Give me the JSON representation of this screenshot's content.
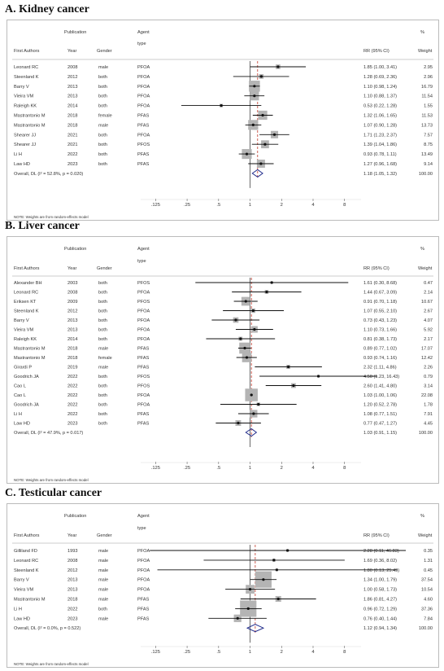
{
  "panels": [
    {
      "title": "A. Kidney cancer",
      "headers": {
        "publication": "Publication",
        "first_authors": "First Authors",
        "year": "Year",
        "gender": "Gender",
        "agent": "Agent",
        "type": "type",
        "rr": "RR (95% CI)",
        "pct": "%",
        "weight": "Weight"
      },
      "note": "NOTE: Weights are from random-effects model",
      "overall": {
        "label": "Overall, DL (I² = 52.8%, p = 0.020)",
        "est": 1.18,
        "lo": 1.05,
        "hi": 1.32,
        "ci_text": "1.18 (1.05, 1.32)",
        "weight": "100.00"
      },
      "ticks": [
        {
          "value": 0.125,
          "label": ".125"
        },
        {
          "value": 0.25,
          "label": ".25"
        },
        {
          "value": 0.5,
          "label": ".5"
        },
        {
          "value": 1,
          "label": "1"
        },
        {
          "value": 2,
          "label": "2"
        },
        {
          "value": 4,
          "label": "4"
        },
        {
          "value": 8,
          "label": "8"
        }
      ],
      "rows": [
        {
          "author": "Leonard RC",
          "year": "2008",
          "gender": "male",
          "agent": "PFOA",
          "ci_text": "1.85 (1.00, 3.41)",
          "weight": "2.95"
        },
        {
          "author": "Steenland K",
          "year": "2012",
          "gender": "both",
          "agent": "PFOA",
          "ci_text": "1.28 (0.69, 2.36)",
          "weight": "2.96"
        },
        {
          "author": "Barry V",
          "year": "2013",
          "gender": "both",
          "agent": "PFOA",
          "ci_text": "1.10 (0.98, 1.24)",
          "weight": "16.79"
        },
        {
          "author": "Vieira VM",
          "year": "2013",
          "gender": "both",
          "agent": "PFOA",
          "ci_text": "1.10 (0.88, 1.37)",
          "weight": "11.54"
        },
        {
          "author": "Raleigh KK",
          "year": "2014",
          "gender": "both",
          "agent": "PFOA",
          "ci_text": "0.53 (0.22, 1.28)",
          "weight": "1.55"
        },
        {
          "author": "Mastrantonio M",
          "year": "2018",
          "gender": "female",
          "agent": "PFAS",
          "ci_text": "1.32 (1.06, 1.65)",
          "weight": "11.53"
        },
        {
          "author": "Mastrantonio M",
          "year": "2018",
          "gender": "male",
          "agent": "PFAS",
          "ci_text": "1.07 (0.90, 1.28)",
          "weight": "13.73"
        },
        {
          "author": "Shearer JJ",
          "year": "2021",
          "gender": "both",
          "agent": "PFOA",
          "ci_text": "1.71 (1.23, 2.37)",
          "weight": "7.57"
        },
        {
          "author": "Shearer JJ",
          "year": "2021",
          "gender": "both",
          "agent": "PFOS",
          "ci_text": "1.39 (1.04, 1.86)",
          "weight": "8.75"
        },
        {
          "author": "Li H",
          "year": "2022",
          "gender": "both",
          "agent": "PFAS",
          "ci_text": "0.93 (0.78, 1.11)",
          "weight": "13.49"
        },
        {
          "author": "Law HD",
          "year": "2023",
          "gender": "both",
          "agent": "PFAS",
          "ci_text": "1.27 (0.96, 1.68)",
          "weight": "9.14"
        }
      ]
    },
    {
      "title": "B. Liver cancer",
      "headers": {
        "publication": "Publication",
        "first_authors": "First Authors",
        "year": "Year",
        "gender": "Gender",
        "agent": "Agent",
        "type": "type",
        "rr": "RR (95% CI)",
        "pct": "%",
        "weight": "Weight"
      },
      "note": "NOTE: Weights are from random-effects model",
      "overall": {
        "label": "Overall, DL (I² = 47.9%, p = 0.017)",
        "est": 1.03,
        "lo": 0.91,
        "hi": 1.15,
        "ci_text": "1.03 (0.91, 1.15)",
        "weight": "100.00"
      },
      "ticks": [
        {
          "value": 0.125,
          "label": ".125"
        },
        {
          "value": 0.25,
          "label": ".25"
        },
        {
          "value": 0.5,
          "label": ".5"
        },
        {
          "value": 1,
          "label": "1"
        },
        {
          "value": 2,
          "label": "2"
        },
        {
          "value": 4,
          "label": "4"
        },
        {
          "value": 8,
          "label": "8"
        }
      ],
      "rows": [
        {
          "author": "Alexander BH",
          "year": "2003",
          "gender": "both",
          "agent": "PFOS",
          "ci_text": "1.61 (0.30, 8.68)",
          "weight": "0.47"
        },
        {
          "author": "Leonard RC",
          "year": "2008",
          "gender": "both",
          "agent": "PFOA",
          "ci_text": "1.44 (0.67, 3.09)",
          "weight": "2.14"
        },
        {
          "author": "Eriksen KT",
          "year": "2009",
          "gender": "both",
          "agent": "PFOS",
          "ci_text": "0.91 (0.70, 1.18)",
          "weight": "10.67"
        },
        {
          "author": "Steenland K",
          "year": "2012",
          "gender": "both",
          "agent": "PFOA",
          "ci_text": "1.07 (0.55, 2.10)",
          "weight": "2.67"
        },
        {
          "author": "Barry V",
          "year": "2013",
          "gender": "both",
          "agent": "PFOA",
          "ci_text": "0.73 (0.43, 1.23)",
          "weight": "4.07"
        },
        {
          "author": "Vieira VM",
          "year": "2013",
          "gender": "both",
          "agent": "PFOA",
          "ci_text": "1.10 (0.73, 1.66)",
          "weight": "5.92"
        },
        {
          "author": "Raleigh KK",
          "year": "2014",
          "gender": "both",
          "agent": "PFOA",
          "ci_text": "0.81 (0.38, 1.73)",
          "weight": "2.17"
        },
        {
          "author": "Mastrantonio M",
          "year": "2018",
          "gender": "male",
          "agent": "PFAS",
          "ci_text": "0.89 (0.77, 1.02)",
          "weight": "17.07"
        },
        {
          "author": "Mastrantonio M",
          "year": "2018",
          "gender": "female",
          "agent": "PFAS",
          "ci_text": "0.93 (0.74, 1.16)",
          "weight": "12.42"
        },
        {
          "author": "Girardi P",
          "year": "2019",
          "gender": "male",
          "agent": "PFAS",
          "ci_text": "2.32 (1.11, 4.86)",
          "weight": "2.26"
        },
        {
          "author": "Goodrich JA",
          "year": "2022",
          "gender": "both",
          "agent": "PFOS",
          "ci_text": "4.50 (1.23, 16.43)",
          "weight": "0.79"
        },
        {
          "author": "Cao L",
          "year": "2022",
          "gender": "both",
          "agent": "PFOS",
          "ci_text": "2.60 (1.41, 4.80)",
          "weight": "3.14"
        },
        {
          "author": "Cao L",
          "year": "2022",
          "gender": "both",
          "agent": "PFOA",
          "ci_text": "1.03 (1.00, 1.06)",
          "weight": "22.08"
        },
        {
          "author": "Goodrich JA",
          "year": "2022",
          "gender": "both",
          "agent": "PFOA",
          "ci_text": "1.20 (0.52, 2.78)",
          "weight": "1.78"
        },
        {
          "author": "Li H",
          "year": "2022",
          "gender": "both",
          "agent": "PFAS",
          "ci_text": "1.08 (0.77, 1.51)",
          "weight": "7.91"
        },
        {
          "author": "Law HD",
          "year": "2023",
          "gender": "both",
          "agent": "PFAS",
          "ci_text": "0.77 (0.47, 1.27)",
          "weight": "4.45"
        }
      ]
    },
    {
      "title": "C. Testicular cancer",
      "headers": {
        "publication": "Publication",
        "first_authors": "First Authors",
        "year": "Year",
        "gender": "Gender",
        "agent": "Agent",
        "type": "type",
        "rr": "RR (95% CI)",
        "pct": "%",
        "weight": "Weight"
      },
      "note": "NOTE: Weights are from random-effects model",
      "overall": {
        "label": "Overall, DL (I² = 0.0%, p = 0.522)",
        "est": 1.12,
        "lo": 0.94,
        "hi": 1.34,
        "ci_text": "1.12 (0.94, 1.34)",
        "weight": "100.00"
      },
      "ticks": [
        {
          "value": 0.125,
          "label": ".125"
        },
        {
          "value": 0.25,
          "label": ".25"
        },
        {
          "value": 0.5,
          "label": ".5"
        },
        {
          "value": 1,
          "label": "1"
        },
        {
          "value": 2,
          "label": "2"
        },
        {
          "value": 4,
          "label": "4"
        },
        {
          "value": 8,
          "label": "8"
        }
      ],
      "rows": [
        {
          "author": "Gilliland FD",
          "year": "1993",
          "gender": "male",
          "agent": "PFOA",
          "ci_text": "2.28 (0.11, 46.83)",
          "weight": "0.35"
        },
        {
          "author": "Leonard RC",
          "year": "2008",
          "gender": "male",
          "agent": "PFOA",
          "ci_text": "1.69 (0.36, 8.02)",
          "weight": "1.31"
        },
        {
          "author": "Steenland K",
          "year": "2012",
          "gender": "male",
          "agent": "PFOA",
          "ci_text": "1.80 (0.13, 25.49)",
          "weight": "0.45"
        },
        {
          "author": "Barry V",
          "year": "2013",
          "gender": "male",
          "agent": "PFOA",
          "ci_text": "1.34 (1.00, 1.79)",
          "weight": "37.54"
        },
        {
          "author": "Vieira VM",
          "year": "2013",
          "gender": "male",
          "agent": "PFOA",
          "ci_text": "1.00 (0.58, 1.73)",
          "weight": "10.54"
        },
        {
          "author": "Mastrantonio M",
          "year": "2018",
          "gender": "male",
          "agent": "PFAS",
          "ci_text": "1.86 (0.81, 4.27)",
          "weight": "4.60"
        },
        {
          "author": "Li H",
          "year": "2022",
          "gender": "both",
          "agent": "PFAS",
          "ci_text": "0.96 (0.72, 1.29)",
          "weight": "37.36"
        },
        {
          "author": "Law HD",
          "year": "2023",
          "gender": "male",
          "agent": "PFAS",
          "ci_text": "0.76 (0.40, 1.44)",
          "weight": "7.84"
        }
      ]
    }
  ],
  "chart_data": [
    {
      "type": "forest",
      "title": "A. Kidney cancer",
      "xscale": "log",
      "xticks": [
        0.125,
        0.25,
        0.5,
        1,
        2,
        4,
        8
      ],
      "reference_line": 1,
      "categories": [
        "Leonard RC 2008 male PFOA",
        "Steenland K 2012 both PFOA",
        "Barry V 2013 both PFOA",
        "Vieira VM 2013 both PFOA",
        "Raleigh KK 2014 both PFOA",
        "Mastrantonio M 2018 female PFAS",
        "Mastrantonio M 2018 male PFAS",
        "Shearer JJ 2021 both PFOA",
        "Shearer JJ 2021 both PFOS",
        "Li H 2022 both PFAS",
        "Law HD 2023 both PFAS"
      ],
      "rr": [
        1.85,
        1.28,
        1.1,
        1.1,
        0.53,
        1.32,
        1.07,
        1.71,
        1.39,
        0.93,
        1.27
      ],
      "ci_low": [
        1.0,
        0.69,
        0.98,
        0.88,
        0.22,
        1.06,
        0.9,
        1.23,
        1.04,
        0.78,
        0.96
      ],
      "ci_high": [
        3.41,
        2.36,
        1.24,
        1.37,
        1.28,
        1.65,
        1.28,
        2.37,
        1.86,
        1.11,
        1.68
      ],
      "weights": [
        2.95,
        2.96,
        16.79,
        11.54,
        1.55,
        11.53,
        13.73,
        7.57,
        8.75,
        13.49,
        9.14
      ],
      "overall": {
        "rr": 1.18,
        "ci_low": 1.05,
        "ci_high": 1.32,
        "i2": 52.8,
        "p": 0.02
      }
    },
    {
      "type": "forest",
      "title": "B. Liver cancer",
      "xscale": "log",
      "xticks": [
        0.125,
        0.25,
        0.5,
        1,
        2,
        4,
        8
      ],
      "reference_line": 1,
      "categories": [
        "Alexander BH 2003 both PFOS",
        "Leonard RC 2008 both PFOA",
        "Eriksen KT 2009 both PFOS",
        "Steenland K 2012 both PFOA",
        "Barry V 2013 both PFOA",
        "Vieira VM 2013 both PFOA",
        "Raleigh KK 2014 both PFOA",
        "Mastrantonio M 2018 male PFAS",
        "Mastrantonio M 2018 female PFAS",
        "Girardi P 2019 male PFAS",
        "Goodrich JA 2022 both PFOS",
        "Cao L 2022 both PFOS",
        "Cao L 2022 both PFOA",
        "Goodrich JA 2022 both PFOA",
        "Li H 2022 both PFAS",
        "Law HD 2023 both PFAS"
      ],
      "rr": [
        1.61,
        1.44,
        0.91,
        1.07,
        0.73,
        1.1,
        0.81,
        0.89,
        0.93,
        2.32,
        4.5,
        2.6,
        1.03,
        1.2,
        1.08,
        0.77
      ],
      "ci_low": [
        0.3,
        0.67,
        0.7,
        0.55,
        0.43,
        0.73,
        0.38,
        0.77,
        0.74,
        1.11,
        1.23,
        1.41,
        1.0,
        0.52,
        0.77,
        0.47
      ],
      "ci_high": [
        8.68,
        3.09,
        1.18,
        2.1,
        1.23,
        1.66,
        1.73,
        1.02,
        1.16,
        4.86,
        16.43,
        4.8,
        1.06,
        2.78,
        1.51,
        1.27
      ],
      "weights": [
        0.47,
        2.14,
        10.67,
        2.67,
        4.07,
        5.92,
        2.17,
        17.07,
        12.42,
        2.26,
        0.79,
        3.14,
        22.08,
        1.78,
        7.91,
        4.45
      ],
      "overall": {
        "rr": 1.03,
        "ci_low": 0.91,
        "ci_high": 1.15,
        "i2": 47.9,
        "p": 0.017
      }
    },
    {
      "type": "forest",
      "title": "C. Testicular cancer",
      "xscale": "log",
      "xticks": [
        0.125,
        0.25,
        0.5,
        1,
        2,
        4,
        8
      ],
      "reference_line": 1,
      "categories": [
        "Gilliland FD 1993 male PFOA",
        "Leonard RC 2008 male PFOA",
        "Steenland K 2012 male PFOA",
        "Barry V 2013 male PFOA",
        "Vieira VM 2013 male PFOA",
        "Mastrantonio M 2018 male PFAS",
        "Li H 2022 both PFAS",
        "Law HD 2023 male PFAS"
      ],
      "rr": [
        2.28,
        1.69,
        1.8,
        1.34,
        1.0,
        1.86,
        0.96,
        0.76
      ],
      "ci_low": [
        0.11,
        0.36,
        0.13,
        1.0,
        0.58,
        0.81,
        0.72,
        0.4
      ],
      "ci_high": [
        46.83,
        8.02,
        25.49,
        1.79,
        1.73,
        4.27,
        1.29,
        1.44
      ],
      "weights": [
        0.35,
        1.31,
        0.45,
        37.54,
        10.54,
        4.6,
        37.36,
        7.84
      ],
      "overall": {
        "rr": 1.12,
        "ci_low": 0.94,
        "ci_high": 1.34,
        "i2": 0.0,
        "p": 0.522
      }
    }
  ]
}
